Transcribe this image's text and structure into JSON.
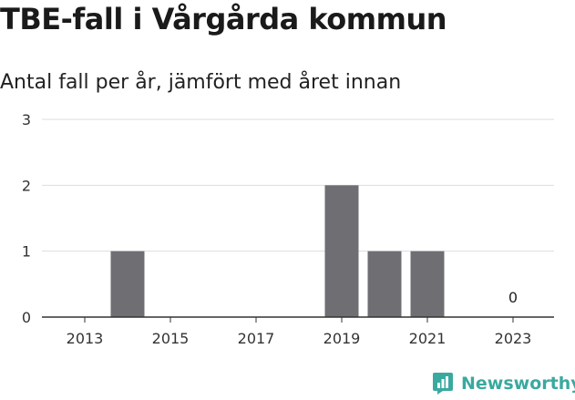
{
  "title": "TBE-fall i Vårgårda kommun",
  "subtitle": "Antal fall per år, jämfört med året innan",
  "brand": {
    "name": "Newsworthy",
    "icon": "newsworthy-logo-icon",
    "color": "#3aa9a0"
  },
  "chart_data": {
    "type": "bar",
    "title": "TBE-fall i Vårgårda kommun",
    "subtitle": "Antal fall per år, jämfört med året innan",
    "categories": [
      "2013",
      "2014",
      "2015",
      "2016",
      "2017",
      "2018",
      "2019",
      "2020",
      "2021",
      "2022",
      "2023"
    ],
    "values": [
      0,
      1,
      0,
      0,
      0,
      0,
      2,
      1,
      1,
      0,
      0
    ],
    "x_tick_labels": [
      "2013",
      "2015",
      "2017",
      "2019",
      "2021",
      "2023"
    ],
    "y_ticks": [
      0,
      1,
      2,
      3
    ],
    "ylim": [
      0,
      3
    ],
    "xlabel": "",
    "ylabel": "",
    "grid": true,
    "data_labels": [
      {
        "category": "2023",
        "label": "0"
      }
    ],
    "colors": {
      "bar": "#6f6e73",
      "grid": "#dddddd",
      "axis": "#333333"
    }
  }
}
